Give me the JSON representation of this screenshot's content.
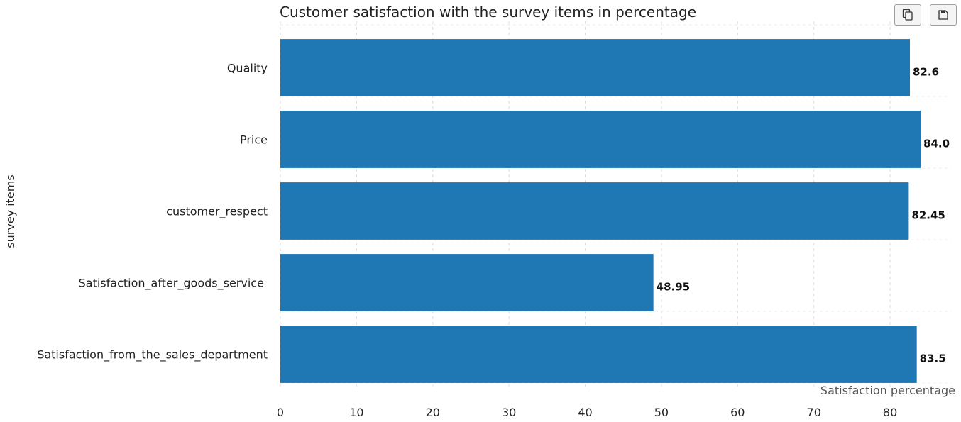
{
  "toolbar": {
    "copy_icon": "copy-icon",
    "save_icon": "floppy-disk-icon"
  },
  "chart_data": {
    "type": "bar",
    "orientation": "horizontal",
    "title": "Customer satisfaction with the survey items in percentage",
    "xlabel": "Satisfaction percentage",
    "ylabel": "survey items",
    "categories": [
      "Quality",
      "Price",
      "customer_respect",
      "Satisfaction_after_goods_service ",
      "Satisfaction_from_the_sales_department"
    ],
    "values": [
      82.6,
      84.0,
      82.45,
      48.95,
      83.5
    ],
    "value_labels": [
      "82.6",
      "84.0",
      "82.45",
      "48.95",
      "83.5"
    ],
    "xlim": [
      0,
      88
    ],
    "xticks": [
      0,
      10,
      20,
      30,
      40,
      50,
      60,
      70,
      80
    ],
    "grid": true,
    "bar_color": "#1f77b4"
  }
}
